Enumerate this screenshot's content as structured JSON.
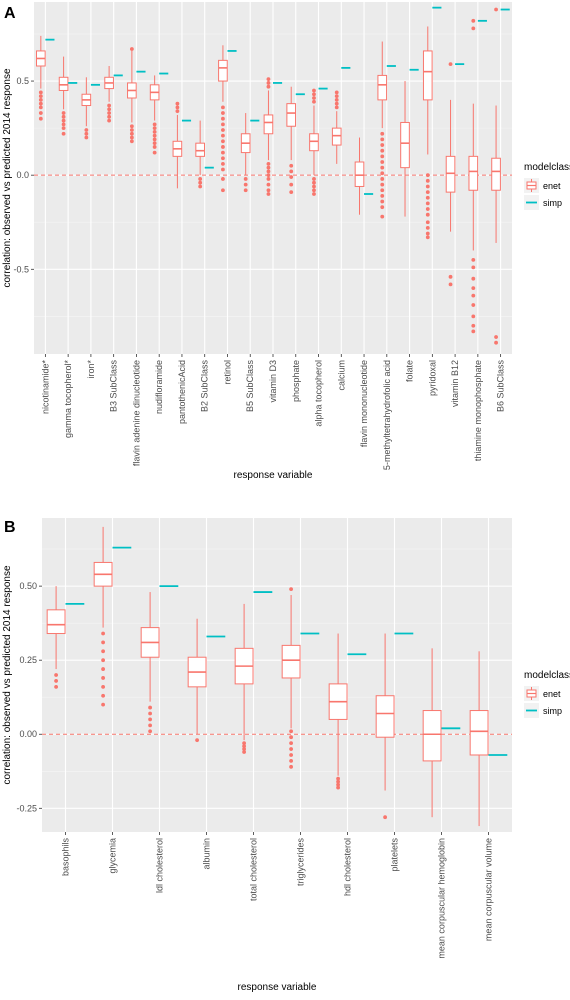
{
  "chart_data": [
    {
      "panel": "A",
      "type": "boxplot",
      "xlabel": "response variable",
      "ylabel": "correlation: observed vs predicted 2014 response",
      "ylim": [
        -0.95,
        0.92
      ],
      "yticks": [
        -0.5,
        0.0,
        0.5
      ],
      "ytick_labels": [
        "-0.5",
        "0.0",
        "0.5"
      ],
      "reference_line": 0.0,
      "legend": {
        "title": "modelclass",
        "entries": [
          "enet",
          "simp"
        ],
        "colors": [
          "#F8766D",
          "#00BFC4"
        ],
        "position": "right"
      },
      "categories": [
        "nicotinamide*",
        "gamma tocopherol*",
        "iron*",
        "B3 SubClass",
        "flavin adenine dinucleotide",
        "nudifloramide",
        "pantothenicAcid",
        "B2 SubClass",
        "retinol",
        "B5 SubClass",
        "vitamin D3",
        "phosphate",
        "alpha tocopherol",
        "calcium",
        "flavin mononucleotide",
        "5-methyltetrahydrofolic acid",
        "folate",
        "pyridoxal",
        "vitamin B12",
        "thiamine monophosphate",
        "B6 SubClass"
      ],
      "series": [
        {
          "name": "enet",
          "boxes": [
            {
              "lo": 0.46,
              "q1": 0.58,
              "med": 0.62,
              "q3": 0.66,
              "hi": 0.74,
              "outliers": [
                0.44,
                0.42,
                0.4,
                0.38,
                0.36,
                0.33,
                0.3
              ]
            },
            {
              "lo": 0.35,
              "q1": 0.45,
              "med": 0.48,
              "q3": 0.52,
              "hi": 0.63,
              "outliers": [
                0.33,
                0.31,
                0.29,
                0.27,
                0.25,
                0.22
              ]
            },
            {
              "lo": 0.26,
              "q1": 0.37,
              "med": 0.4,
              "q3": 0.43,
              "hi": 0.52,
              "outliers": [
                0.24,
                0.22,
                0.2
              ]
            },
            {
              "lo": 0.39,
              "q1": 0.46,
              "med": 0.49,
              "q3": 0.52,
              "hi": 0.58,
              "outliers": [
                0.37,
                0.35,
                0.33,
                0.31,
                0.29
              ]
            },
            {
              "lo": 0.28,
              "q1": 0.41,
              "med": 0.45,
              "q3": 0.49,
              "hi": 0.66,
              "outliers": [
                0.26,
                0.24,
                0.22,
                0.2,
                0.18,
                0.67
              ]
            },
            {
              "lo": 0.29,
              "q1": 0.4,
              "med": 0.44,
              "q3": 0.48,
              "hi": 0.53,
              "outliers": [
                0.27,
                0.25,
                0.23,
                0.21,
                0.19,
                0.17,
                0.15,
                0.12
              ]
            },
            {
              "lo": -0.07,
              "q1": 0.1,
              "med": 0.14,
              "q3": 0.18,
              "hi": 0.32,
              "outliers": [
                0.34,
                0.36,
                0.38
              ]
            },
            {
              "lo": 0.0,
              "q1": 0.1,
              "med": 0.13,
              "q3": 0.17,
              "hi": 0.29,
              "outliers": [
                -0.02,
                -0.04,
                -0.06
              ]
            },
            {
              "lo": 0.39,
              "q1": 0.5,
              "med": 0.57,
              "q3": 0.61,
              "hi": 0.69,
              "outliers": [
                0.36,
                0.33,
                0.3,
                0.27,
                0.24,
                0.21,
                0.18,
                0.15,
                0.12,
                0.09,
                0.06,
                0.03,
                -0.02,
                -0.08
              ]
            },
            {
              "lo": 0.0,
              "q1": 0.12,
              "med": 0.17,
              "q3": 0.22,
              "hi": 0.33,
              "outliers": [
                -0.02,
                -0.05,
                -0.08
              ]
            },
            {
              "lo": 0.08,
              "q1": 0.22,
              "med": 0.28,
              "q3": 0.32,
              "hi": 0.45,
              "outliers": [
                0.06,
                0.04,
                0.02,
                0.0,
                -0.02,
                -0.05,
                -0.08,
                -0.1,
                0.47,
                0.49,
                0.51
              ]
            },
            {
              "lo": 0.08,
              "q1": 0.26,
              "med": 0.33,
              "q3": 0.38,
              "hi": 0.47,
              "outliers": [
                0.05,
                0.02,
                -0.01,
                -0.05,
                -0.09
              ]
            },
            {
              "lo": 0.0,
              "q1": 0.13,
              "med": 0.18,
              "q3": 0.22,
              "hi": 0.37,
              "outliers": [
                -0.02,
                -0.04,
                -0.06,
                -0.08,
                -0.1,
                0.39,
                0.41,
                0.43,
                0.45
              ]
            },
            {
              "lo": 0.06,
              "q1": 0.16,
              "med": 0.21,
              "q3": 0.25,
              "hi": 0.34,
              "outliers": [
                0.36,
                0.38,
                0.4,
                0.42,
                0.44
              ]
            },
            {
              "lo": -0.21,
              "q1": -0.06,
              "med": 0.0,
              "q3": 0.07,
              "hi": 0.2,
              "outliers": []
            },
            {
              "lo": 0.25,
              "q1": 0.4,
              "med": 0.48,
              "q3": 0.53,
              "hi": 0.71,
              "outliers": [
                0.22,
                0.19,
                0.16,
                0.13,
                0.1,
                0.07,
                0.04,
                0.01,
                -0.02,
                -0.05,
                -0.08,
                -0.11,
                -0.14,
                -0.17,
                -0.22
              ]
            },
            {
              "lo": -0.22,
              "q1": 0.04,
              "med": 0.17,
              "q3": 0.28,
              "hi": 0.5,
              "outliers": []
            },
            {
              "lo": 0.11,
              "q1": 0.4,
              "med": 0.55,
              "q3": 0.66,
              "hi": 0.79,
              "outliers": [
                0.0,
                -0.03,
                -0.06,
                -0.09,
                -0.12,
                -0.15,
                -0.18,
                -0.21,
                -0.25,
                -0.28,
                -0.31,
                -0.33
              ]
            },
            {
              "lo": -0.3,
              "q1": -0.09,
              "med": 0.01,
              "q3": 0.1,
              "hi": 0.4,
              "outliers": [
                -0.54,
                -0.58,
                0.59
              ]
            },
            {
              "lo": -0.4,
              "q1": -0.08,
              "med": 0.02,
              "q3": 0.1,
              "hi": 0.38,
              "outliers": [
                -0.45,
                -0.49,
                -0.55,
                -0.6,
                -0.64,
                -0.69,
                -0.75,
                -0.8,
                -0.83,
                0.78,
                0.82
              ]
            },
            {
              "lo": -0.36,
              "q1": -0.08,
              "med": 0.02,
              "q3": 0.09,
              "hi": 0.37,
              "outliers": [
                -0.86,
                -0.89,
                0.88
              ]
            }
          ]
        },
        {
          "name": "simp",
          "values": [
            0.72,
            0.49,
            0.48,
            0.53,
            0.55,
            0.54,
            0.29,
            0.04,
            0.66,
            0.29,
            0.49,
            0.43,
            0.46,
            0.57,
            -0.1,
            0.58,
            0.56,
            0.89,
            0.59,
            0.82,
            0.88
          ]
        }
      ]
    },
    {
      "panel": "B",
      "type": "boxplot",
      "xlabel": "response variable",
      "ylabel": "correlation: observed vs predicted 2014 response",
      "ylim": [
        -0.33,
        0.73
      ],
      "yticks": [
        -0.25,
        0.0,
        0.25,
        0.5
      ],
      "ytick_labels": [
        "-0.25",
        "0.00",
        "0.25",
        "0.50"
      ],
      "reference_line": 0.0,
      "legend": {
        "title": "modelclass",
        "entries": [
          "enet",
          "simp"
        ],
        "colors": [
          "#F8766D",
          "#00BFC4"
        ],
        "position": "right"
      },
      "categories": [
        "basophils",
        "glycemia",
        "ldl cholesterol",
        "albumin",
        "total cholesterol",
        "triglycerides",
        "hdl cholesterol",
        "platelets",
        "mean corpuscular hemoglobin",
        "mean corpuscular volume"
      ],
      "series": [
        {
          "name": "enet",
          "boxes": [
            {
              "lo": 0.22,
              "q1": 0.34,
              "med": 0.37,
              "q3": 0.42,
              "hi": 0.5,
              "outliers": [
                0.2,
                0.18,
                0.16
              ]
            },
            {
              "lo": 0.36,
              "q1": 0.5,
              "med": 0.54,
              "q3": 0.58,
              "hi": 0.7,
              "outliers": [
                0.34,
                0.31,
                0.28,
                0.25,
                0.22,
                0.19,
                0.16,
                0.13,
                0.1
              ]
            },
            {
              "lo": 0.11,
              "q1": 0.26,
              "med": 0.31,
              "q3": 0.36,
              "hi": 0.48,
              "outliers": [
                0.09,
                0.07,
                0.05,
                0.03,
                0.01
              ]
            },
            {
              "lo": 0.0,
              "q1": 0.16,
              "med": 0.21,
              "q3": 0.26,
              "hi": 0.39,
              "outliers": [
                -0.02
              ]
            },
            {
              "lo": -0.02,
              "q1": 0.17,
              "med": 0.23,
              "q3": 0.29,
              "hi": 0.44,
              "outliers": [
                -0.03,
                -0.04,
                -0.05,
                -0.06
              ]
            },
            {
              "lo": 0.02,
              "q1": 0.19,
              "med": 0.25,
              "q3": 0.3,
              "hi": 0.47,
              "outliers": [
                0.01,
                -0.01,
                -0.03,
                -0.05,
                -0.07,
                -0.09,
                -0.11,
                0.49
              ]
            },
            {
              "lo": -0.14,
              "q1": 0.05,
              "med": 0.11,
              "q3": 0.17,
              "hi": 0.34,
              "outliers": [
                -0.15,
                -0.16,
                -0.17,
                -0.18
              ]
            },
            {
              "lo": -0.19,
              "q1": -0.01,
              "med": 0.07,
              "q3": 0.13,
              "hi": 0.34,
              "outliers": [
                -0.28
              ]
            },
            {
              "lo": -0.28,
              "q1": -0.09,
              "med": 0.0,
              "q3": 0.08,
              "hi": 0.29,
              "outliers": []
            },
            {
              "lo": -0.31,
              "q1": -0.07,
              "med": 0.01,
              "q3": 0.08,
              "hi": 0.28,
              "outliers": []
            }
          ]
        },
        {
          "name": "simp",
          "values": [
            0.44,
            0.63,
            0.5,
            0.33,
            0.48,
            0.34,
            0.27,
            0.34,
            0.02,
            -0.07
          ]
        }
      ]
    }
  ]
}
